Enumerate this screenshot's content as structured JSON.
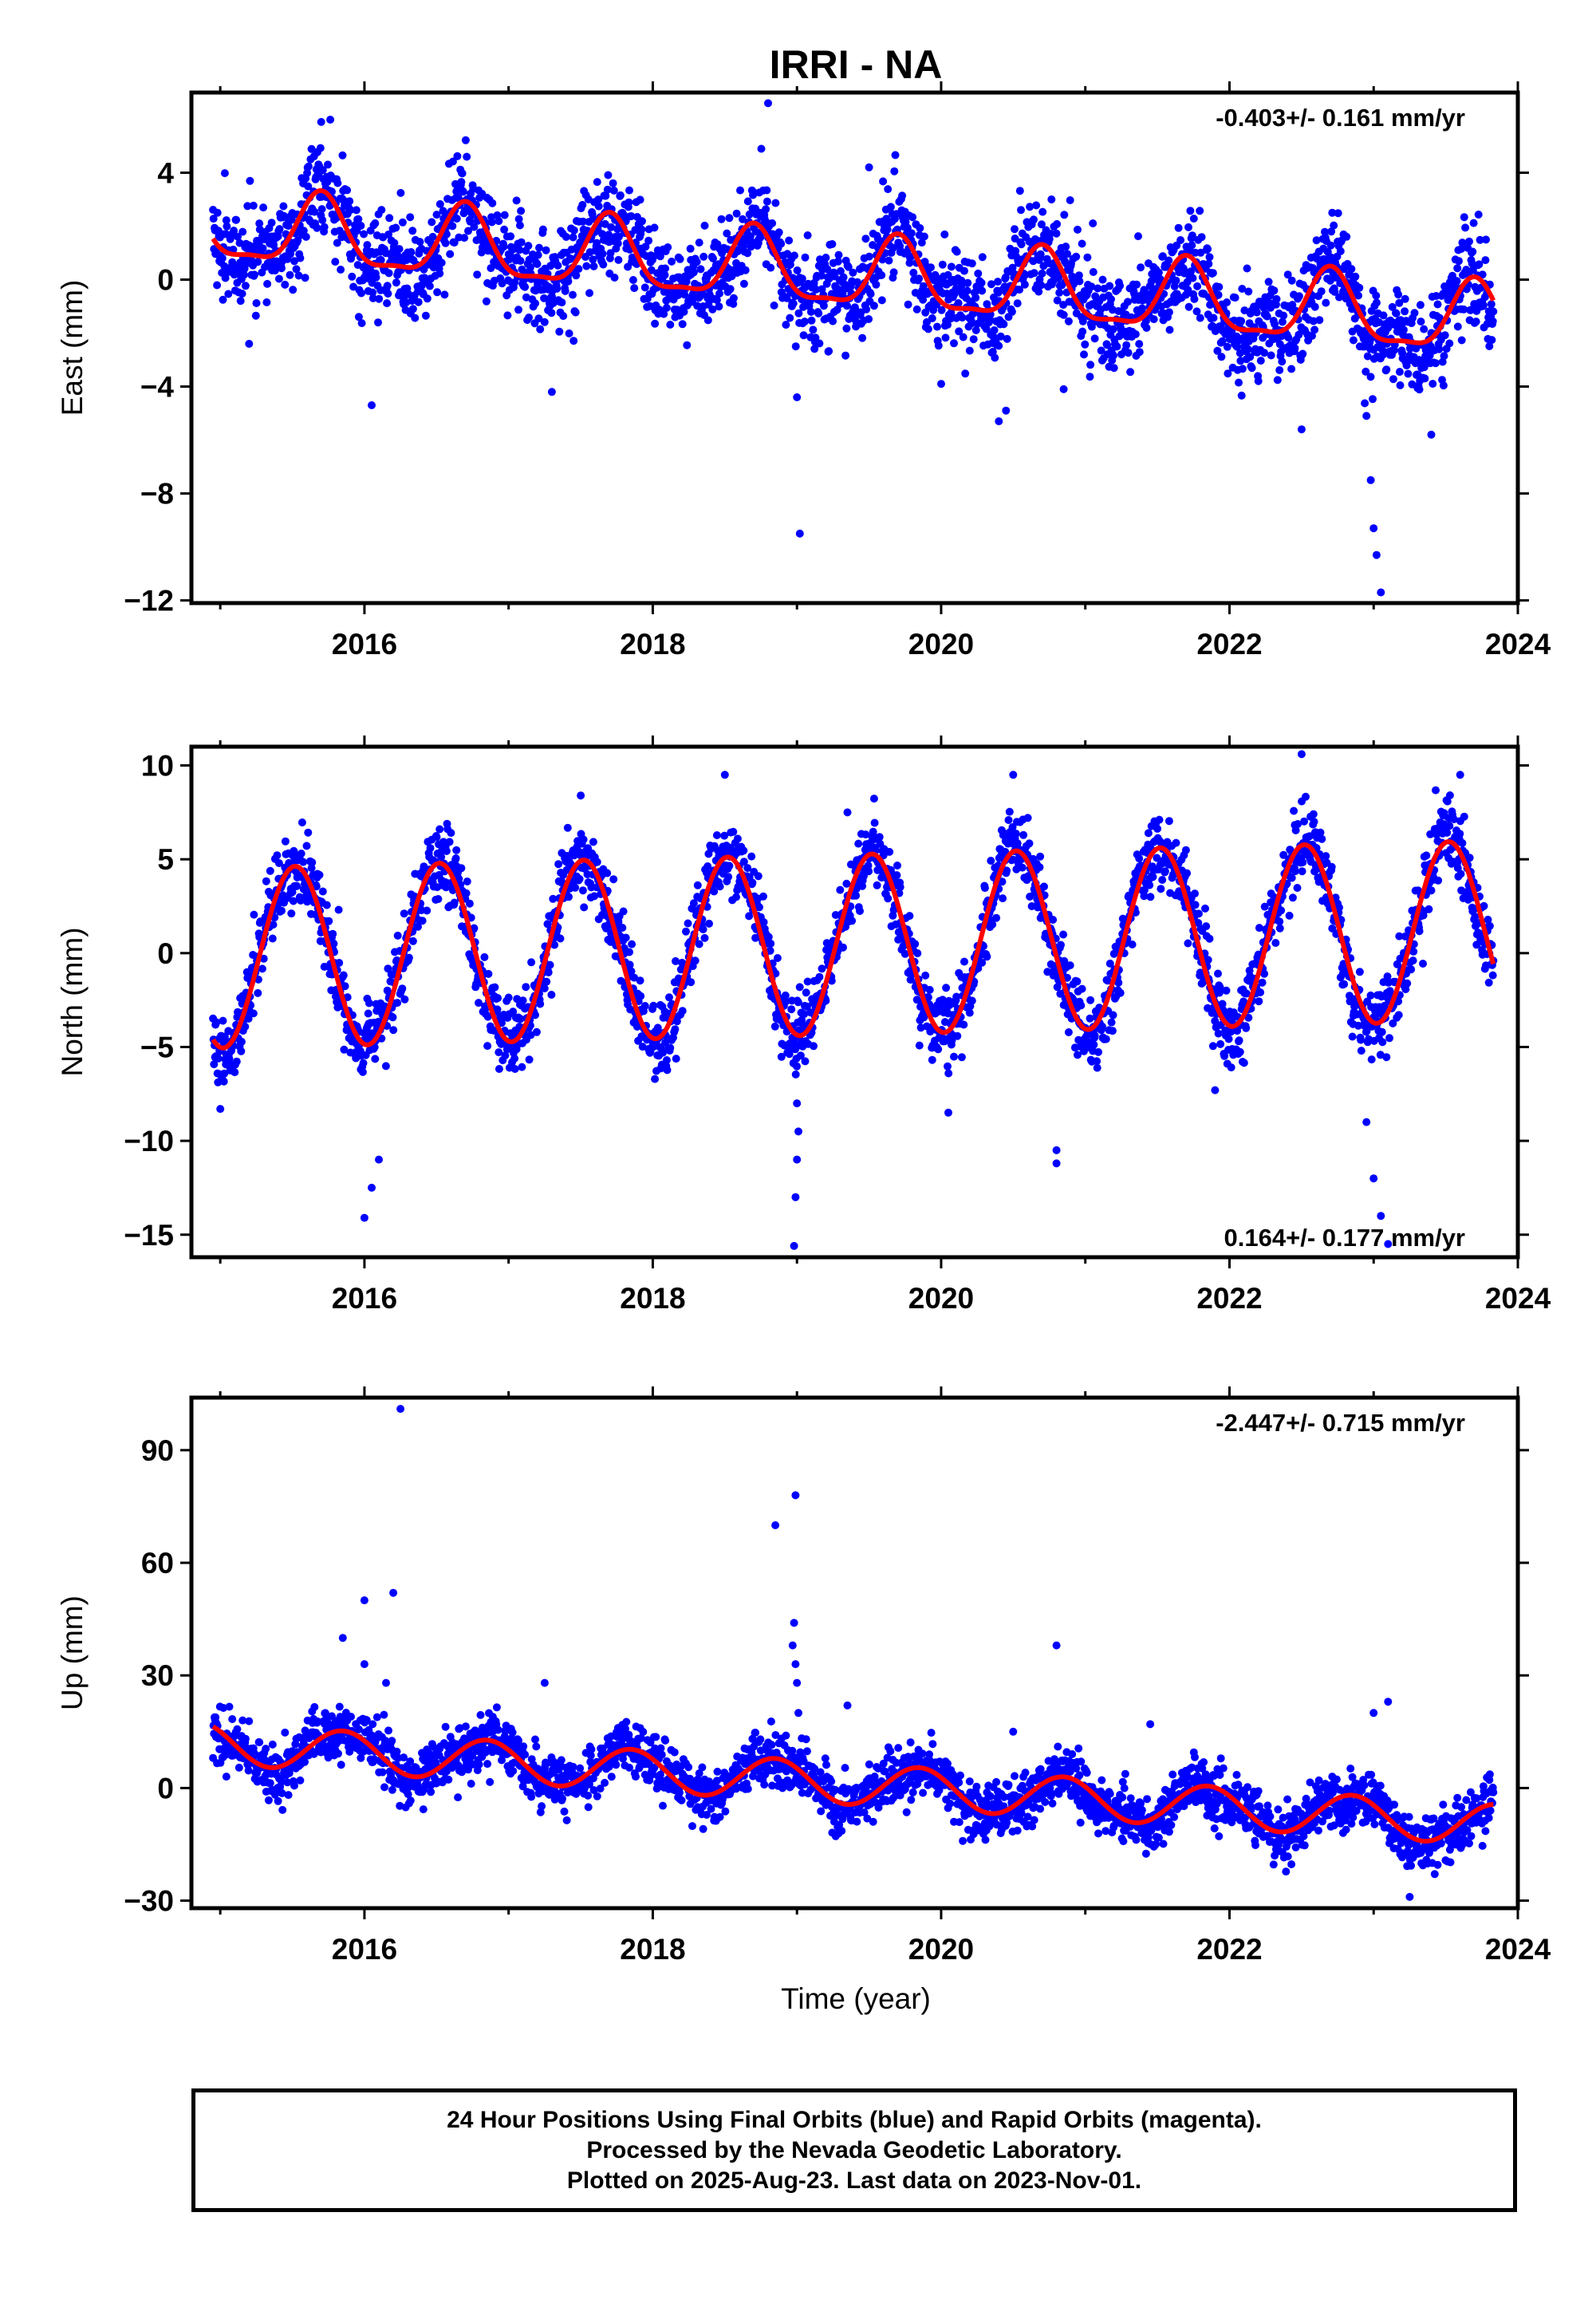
{
  "title": "IRRI - NA",
  "x_axis_label": "Time (year)",
  "caption": [
    "24 Hour Positions Using Final Orbits (blue) and Rapid Orbits (magenta).",
    "Processed by the Nevada Geodetic Laboratory.",
    "Plotted on 2025-Aug-23. Last data on 2023-Nov-01."
  ],
  "colors": {
    "observations": "#0000ff",
    "model": "#ff0000",
    "frame": "#000000"
  },
  "chart_data": [
    {
      "type": "scatter",
      "ylabel": "East (mm)",
      "rate_label": "-0.403+/- 0.161 mm/yr",
      "rate_position": "top-right",
      "xlim": [
        2014.8,
        2024.0
      ],
      "ylim": [
        -12.1,
        7
      ],
      "x_ticks": [
        2016,
        2018,
        2020,
        2022,
        2024
      ],
      "y_ticks": [
        -12,
        -8,
        -4,
        0,
        4
      ],
      "y_tick_labels": [
        "−12",
        "−8",
        "−4",
        "0",
        "4"
      ],
      "data_range": [
        2014.95,
        2023.83
      ],
      "trend": {
        "slope": -0.403,
        "value_at_2019": 0.3
      },
      "seasonal": {
        "annual_amplitude": 1.3,
        "annual_peak_year_fraction": 0.7,
        "semiannual_amplitude": 0.4
      },
      "scatter_std": 0.9,
      "outliers": [
        [
          2015.7,
          5.9
        ],
        [
          2016.05,
          -4.7
        ],
        [
          2017.3,
          -4.2
        ],
        [
          2018.8,
          6.6
        ],
        [
          2019.02,
          -9.5
        ],
        [
          2019.0,
          -4.4
        ],
        [
          2020.45,
          -4.9
        ],
        [
          2020.4,
          -5.3
        ],
        [
          2020.0,
          -3.9
        ],
        [
          2020.85,
          -4.1
        ],
        [
          2022.95,
          -5.1
        ],
        [
          2022.98,
          -7.5
        ],
        [
          2023.0,
          -9.3
        ],
        [
          2023.02,
          -10.3
        ],
        [
          2023.05,
          -11.7
        ],
        [
          2022.5,
          -5.6
        ],
        [
          2023.4,
          -5.8
        ],
        [
          2015.2,
          -2.4
        ],
        [
          2019.5,
          4.2
        ]
      ],
      "series": [
        {
          "name": "Final Orbits (blue)",
          "kind": "points"
        },
        {
          "name": "model",
          "kind": "line"
        }
      ]
    },
    {
      "type": "scatter",
      "ylabel": "North (mm)",
      "rate_label": "0.164+/- 0.177 mm/yr",
      "rate_position": "bottom-right",
      "xlim": [
        2014.8,
        2024.0
      ],
      "ylim": [
        -16.2,
        11
      ],
      "x_ticks": [
        2016,
        2018,
        2020,
        2022,
        2024
      ],
      "y_ticks": [
        -15,
        -10,
        -5,
        0,
        5,
        10
      ],
      "y_tick_labels": [
        "−15",
        "−10",
        "−5",
        "0",
        "5",
        "10"
      ],
      "data_range": [
        2014.95,
        2023.83
      ],
      "trend": {
        "slope": 0.164,
        "value_at_2019": 0.4
      },
      "seasonal": {
        "annual_amplitude": 4.8,
        "annual_peak_year_fraction": 0.52,
        "semiannual_amplitude": 0.0
      },
      "scatter_std": 1.0,
      "outliers": [
        [
          2016.0,
          -14.1
        ],
        [
          2016.05,
          -12.5
        ],
        [
          2016.1,
          -11.0
        ],
        [
          2017.5,
          8.4
        ],
        [
          2018.5,
          9.5
        ],
        [
          2018.98,
          -15.6
        ],
        [
          2018.99,
          -13.0
        ],
        [
          2019.0,
          -11.0
        ],
        [
          2019.01,
          -9.5
        ],
        [
          2019.0,
          -8.0
        ],
        [
          2020.5,
          9.5
        ],
        [
          2020.05,
          -8.5
        ],
        [
          2020.8,
          -11.2
        ],
        [
          2020.8,
          -10.5
        ],
        [
          2022.5,
          10.6
        ],
        [
          2022.95,
          -9.0
        ],
        [
          2023.0,
          -12.0
        ],
        [
          2023.05,
          -14.0
        ],
        [
          2023.1,
          -15.5
        ],
        [
          2023.6,
          9.5
        ],
        [
          2021.9,
          -7.3
        ],
        [
          2015.0,
          -8.3
        ],
        [
          2019.35,
          7.5
        ]
      ],
      "series": [
        {
          "name": "Final Orbits (blue)",
          "kind": "points"
        },
        {
          "name": "model",
          "kind": "line"
        }
      ]
    },
    {
      "type": "scatter",
      "ylabel": "Up (mm)",
      "rate_label": "-2.447+/- 0.715 mm/yr",
      "rate_position": "top-right",
      "xlim": [
        2014.8,
        2024.0
      ],
      "ylim": [
        -32,
        104
      ],
      "x_ticks": [
        2016,
        2018,
        2020,
        2022,
        2024
      ],
      "y_ticks": [
        -30,
        0,
        30,
        60,
        90
      ],
      "y_tick_labels": [
        "−30",
        "0",
        "30",
        "60",
        "90"
      ],
      "data_range": [
        2014.95,
        2023.83
      ],
      "trend": {
        "slope": -2.447,
        "value_at_2019": 2.0
      },
      "seasonal": {
        "annual_amplitude": 5.5,
        "annual_peak_year_fraction": 0.85,
        "semiannual_amplitude": 0.0
      },
      "scatter_std": 3.6,
      "outliers": [
        [
          2016.25,
          101
        ],
        [
          2016.2,
          52
        ],
        [
          2016.0,
          50
        ],
        [
          2015.85,
          40
        ],
        [
          2016.0,
          33
        ],
        [
          2017.25,
          28
        ],
        [
          2018.85,
          70
        ],
        [
          2018.99,
          78
        ],
        [
          2018.98,
          44
        ],
        [
          2018.97,
          38
        ],
        [
          2018.99,
          33
        ],
        [
          2019.0,
          28
        ],
        [
          2019.01,
          20
        ],
        [
          2019.35,
          22
        ],
        [
          2020.8,
          38
        ],
        [
          2023.1,
          23
        ],
        [
          2023.25,
          -29
        ],
        [
          2023.0,
          20
        ],
        [
          2016.15,
          28
        ],
        [
          2021.45,
          17
        ],
        [
          2020.5,
          15
        ]
      ],
      "series": [
        {
          "name": "Final Orbits (blue)",
          "kind": "points"
        },
        {
          "name": "model",
          "kind": "line"
        }
      ]
    }
  ]
}
